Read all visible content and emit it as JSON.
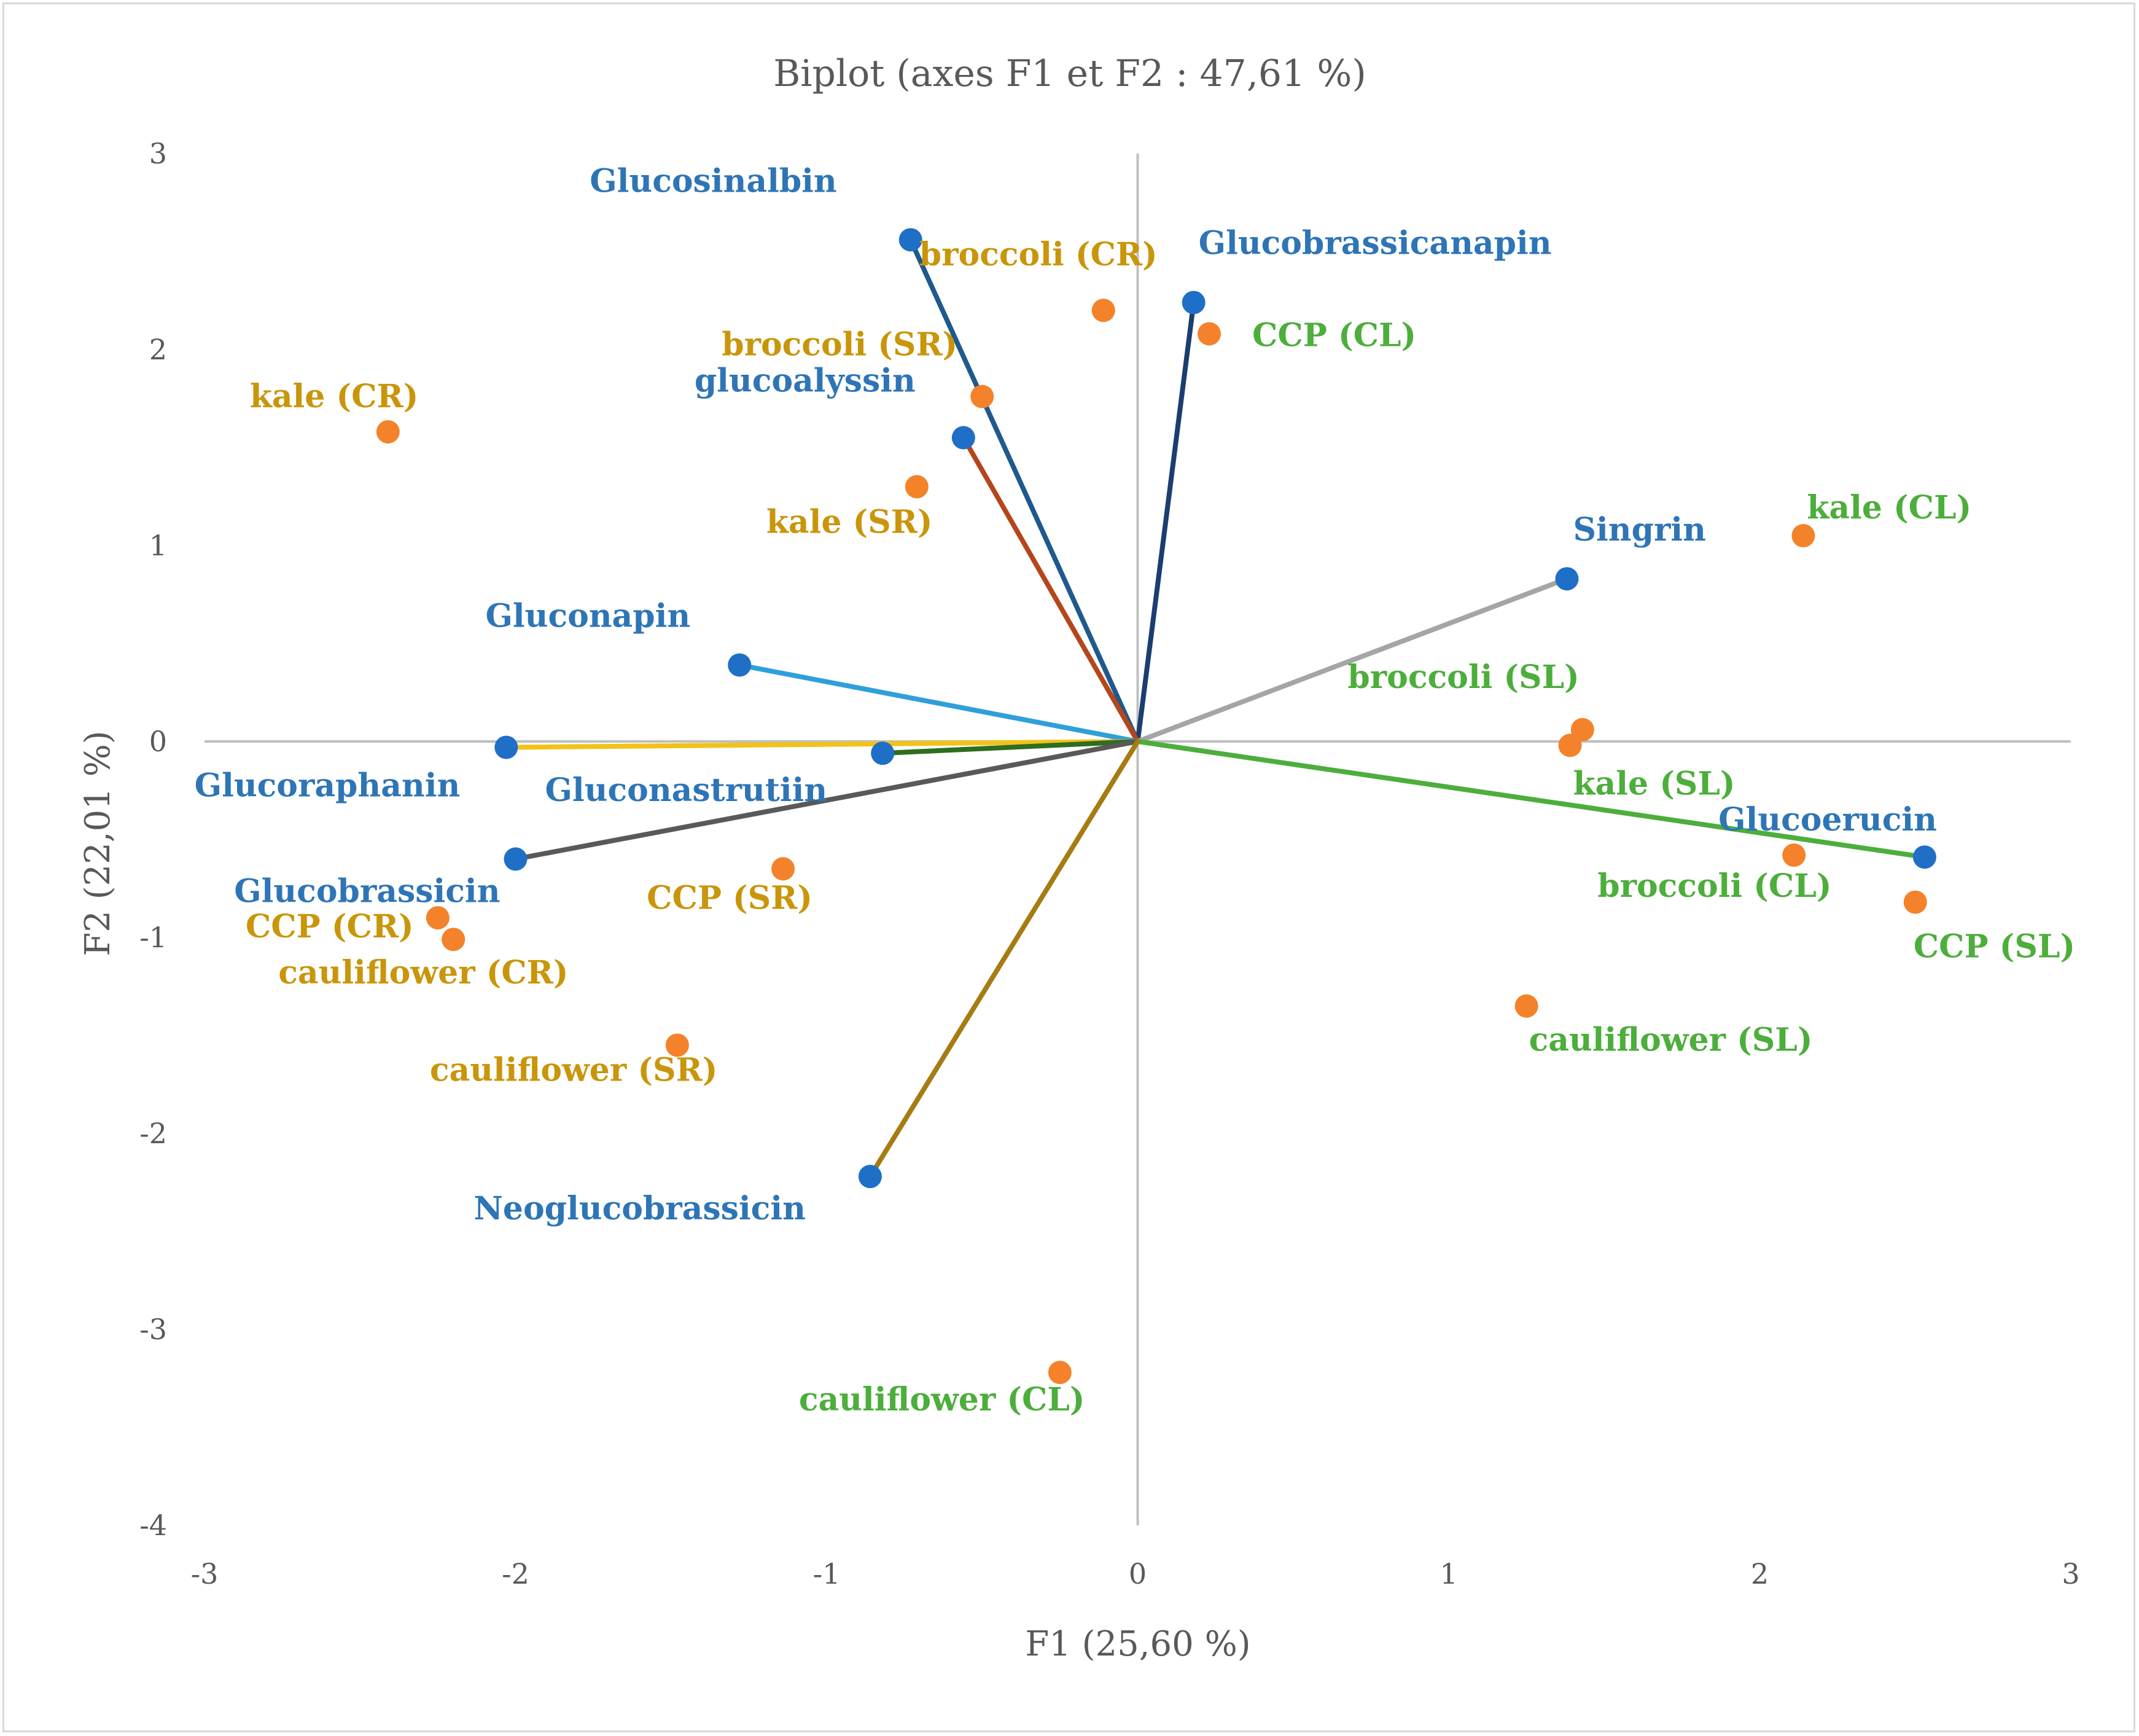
{
  "chart_data": {
    "type": "scatter",
    "subtype": "biplot",
    "title": "Biplot (axes F1 et F2 : 47,61 %)",
    "xlabel": "F1 (25,60 %)",
    "ylabel": "F2 (22,01 %)",
    "xlim": [
      -3,
      3
    ],
    "ylim": [
      -4,
      3
    ],
    "xticks": [
      "-3",
      "-2",
      "-1",
      "0",
      "1",
      "2",
      "3"
    ],
    "yticks": [
      "3",
      "2",
      "1",
      "0",
      "-1",
      "-2",
      "-3",
      "-4"
    ],
    "colors": {
      "variable_point": "#1f6fc6",
      "variable_label": "#2e75b6",
      "observation_point": "#f4822a",
      "raw_label": "#c9950a",
      "cooked_label": "#4cae3b",
      "axis": "#bfbfbf",
      "text": "#595959"
    },
    "variables": [
      {
        "name": "Glucosinalbin",
        "x": -0.73,
        "y": 2.56,
        "line_color": "#1e5a8c"
      },
      {
        "name": "Glucobrassicanapin",
        "x": 0.18,
        "y": 2.24,
        "line_color": "#1b3e6f"
      },
      {
        "name": "glucoalyssin",
        "x": -0.56,
        "y": 1.55,
        "line_color": "#b5461c"
      },
      {
        "name": "Singrin",
        "x": 1.38,
        "y": 0.83,
        "line_color": "#a5a5a5"
      },
      {
        "name": "Gluconapin",
        "x": -1.28,
        "y": 0.39,
        "line_color": "#2e9fdb"
      },
      {
        "name": "Glucoraphanin",
        "x": -2.03,
        "y": -0.03,
        "line_color": "#f2c21b"
      },
      {
        "name": "Gluconastrutiin",
        "x": -0.82,
        "y": -0.06,
        "line_color": "#2d6e1f"
      },
      {
        "name": "Glucobrassicin",
        "x": -2.0,
        "y": -0.6,
        "line_color": "#595959"
      },
      {
        "name": "Glucoerucin",
        "x": 2.53,
        "y": -0.59,
        "line_color": "#4cae3b"
      },
      {
        "name": "Neoglucobrassicin",
        "x": -0.86,
        "y": -2.22,
        "line_color": "#a67c12"
      }
    ],
    "observations": [
      {
        "name": "broccoli (CR)",
        "x": -0.11,
        "y": 2.2,
        "group": "raw"
      },
      {
        "name": "CCP (CL)",
        "x": 0.23,
        "y": 2.08,
        "group": "cooked"
      },
      {
        "name": "broccoli (SR)",
        "x": -0.5,
        "y": 1.76,
        "group": "raw"
      },
      {
        "name": "kale (CR)",
        "x": -2.41,
        "y": 1.58,
        "group": "raw"
      },
      {
        "name": "kale (SR)",
        "x": -0.71,
        "y": 1.3,
        "group": "raw"
      },
      {
        "name": "kale (CL)",
        "x": 2.14,
        "y": 1.05,
        "group": "cooked"
      },
      {
        "name": "broccoli (SL)",
        "x": 1.43,
        "y": 0.06,
        "group": "cooked"
      },
      {
        "name": "kale (SL)",
        "x": 1.39,
        "y": -0.02,
        "group": "cooked"
      },
      {
        "name": "broccoli (CL)",
        "x": 2.11,
        "y": -0.58,
        "group": "cooked"
      },
      {
        "name": "CCP (SL)",
        "x": 2.5,
        "y": -0.82,
        "group": "cooked"
      },
      {
        "name": "CCP (SR)",
        "x": -1.14,
        "y": -0.65,
        "group": "raw"
      },
      {
        "name": "CCP (CR)",
        "x": -2.25,
        "y": -0.9,
        "group": "raw"
      },
      {
        "name": "cauliflower (CR)",
        "x": -2.2,
        "y": -1.01,
        "group": "raw"
      },
      {
        "name": "cauliflower (SL)",
        "x": 1.25,
        "y": -1.35,
        "group": "cooked"
      },
      {
        "name": "cauliflower (SR)",
        "x": -1.48,
        "y": -1.55,
        "group": "raw"
      },
      {
        "name": "cauliflower (CL)",
        "x": -0.25,
        "y": -3.22,
        "group": "cooked"
      }
    ]
  }
}
